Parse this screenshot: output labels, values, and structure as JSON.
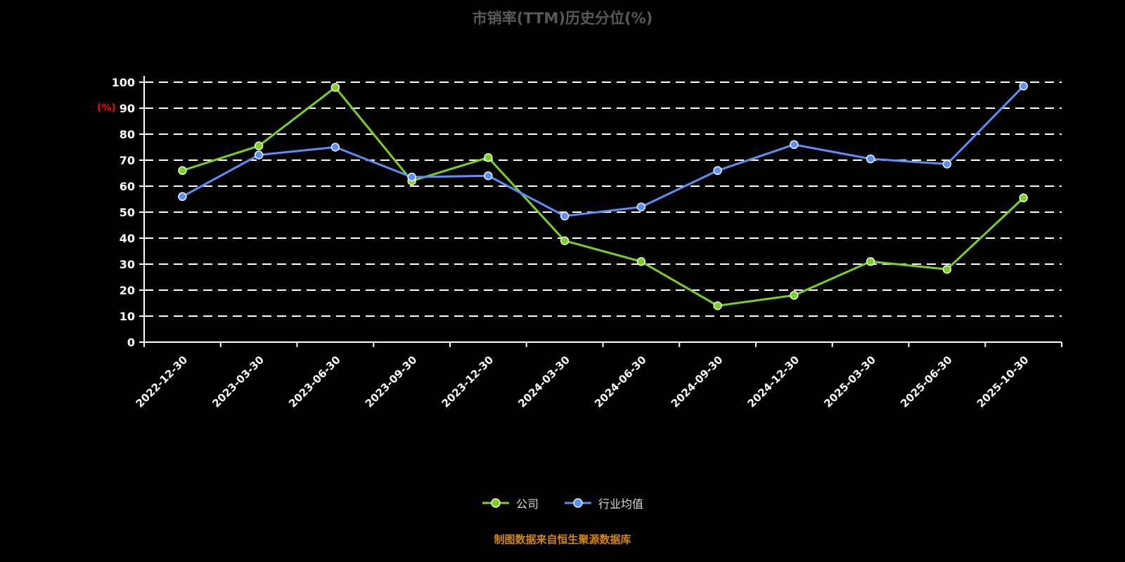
{
  "chart_data": {
    "type": "line",
    "title": "市销率(TTM)历史分位(%)",
    "ylabel": "(%)",
    "footer": "制图数据来自恒生聚源数据库",
    "ylim": [
      0,
      100
    ],
    "ytick_interval": 10,
    "grid": true,
    "legend_position": "bottom",
    "categories": [
      "2022-12-30",
      "2023-03-30",
      "2023-06-30",
      "2023-09-30",
      "2023-12-30",
      "2024-03-30",
      "2024-06-30",
      "2024-09-30",
      "2024-12-30",
      "2025-03-30",
      "2025-06-30",
      "2025-10-30"
    ],
    "series": [
      {
        "name": "公司",
        "color": "#79d21f",
        "values": [
          66,
          75.5,
          98,
          62,
          71,
          39,
          31,
          14,
          18,
          31,
          28,
          55.5
        ]
      },
      {
        "name": "行业均值",
        "color": "#5b8ff9",
        "values": [
          56,
          72,
          75,
          63.5,
          64,
          48.5,
          52,
          66,
          76,
          70.5,
          68.5,
          98.5
        ]
      }
    ],
    "colors": {
      "background": "#000000",
      "title": "#595959",
      "axis": "#ffffff",
      "tick_label": "#ffffff",
      "grid": "#ffffff",
      "ylabel": "#ff0000",
      "legend_text": "#dcdcdc",
      "footer": "#d48806"
    }
  }
}
